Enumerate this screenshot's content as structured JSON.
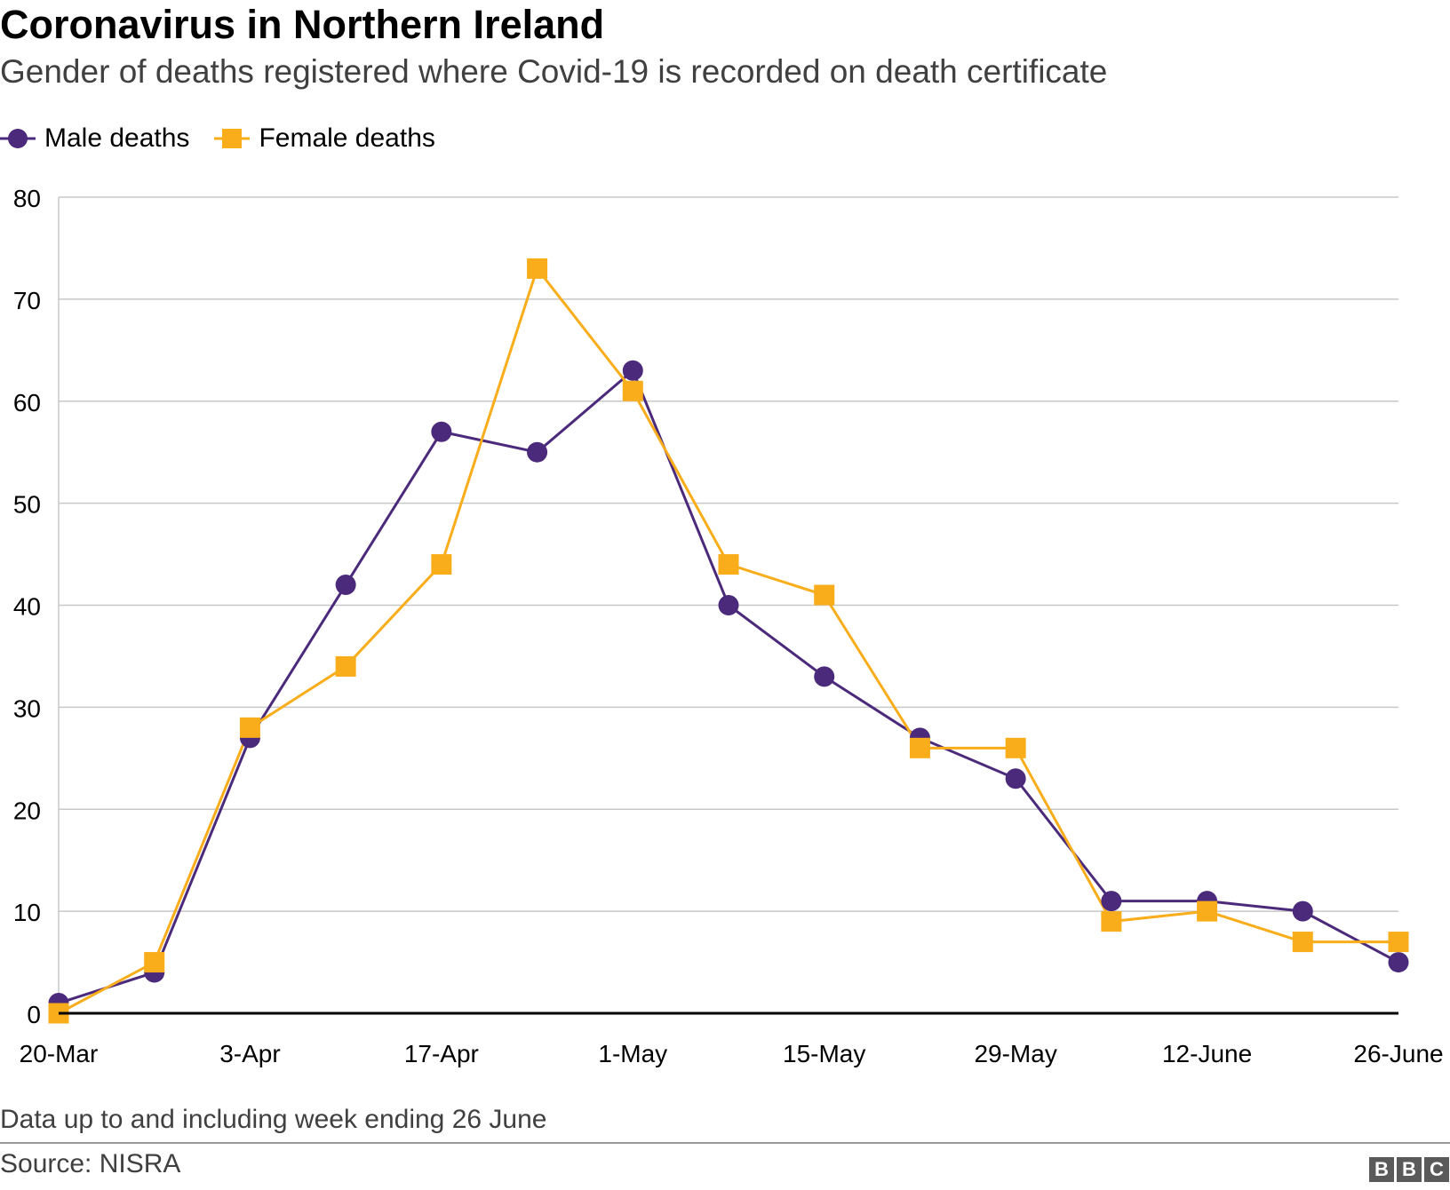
{
  "header": {
    "title": "Coronavirus in Northern Ireland",
    "subtitle": "Gender of deaths registered where Covid-19 is recorded on death certificate"
  },
  "legend": {
    "male_label": "Male deaths",
    "female_label": "Female deaths"
  },
  "footer": {
    "note": "Data up to and including week ending 26 June",
    "source": "Source: NISRA",
    "logo_letters": [
      "B",
      "B",
      "C"
    ]
  },
  "colors": {
    "male": "#4b2a7b",
    "female": "#f9ad1b",
    "grid": "#c8c8c8",
    "axis": "#000000"
  },
  "chart_data": {
    "type": "line",
    "title": "Coronavirus in Northern Ireland",
    "subtitle": "Gender of deaths registered where Covid-19 is recorded on death certificate",
    "xlabel": "",
    "ylabel": "",
    "ylim": [
      0,
      80
    ],
    "y_ticks": [
      0,
      10,
      20,
      30,
      40,
      50,
      60,
      70,
      80
    ],
    "x_tick_labels": [
      "20-Mar",
      "3-Apr",
      "17-Apr",
      "1-May",
      "15-May",
      "29-May",
      "12-June",
      "26-June"
    ],
    "x": [
      "20-Mar",
      "27-Mar",
      "3-Apr",
      "10-Apr",
      "17-Apr",
      "24-Apr",
      "1-May",
      "8-May",
      "15-May",
      "22-May",
      "29-May",
      "5-June",
      "12-June",
      "19-June",
      "26-June"
    ],
    "grid": true,
    "legend_position": "top-left",
    "series": [
      {
        "name": "Male deaths",
        "marker": "circle",
        "color": "#4b2a7b",
        "values": [
          1,
          4,
          27,
          42,
          57,
          55,
          63,
          40,
          33,
          27,
          23,
          11,
          11,
          10,
          5
        ]
      },
      {
        "name": "Female deaths",
        "marker": "square",
        "color": "#f9ad1b",
        "values": [
          0,
          5,
          28,
          34,
          44,
          73,
          61,
          44,
          41,
          26,
          26,
          9,
          10,
          7,
          7
        ]
      }
    ]
  }
}
